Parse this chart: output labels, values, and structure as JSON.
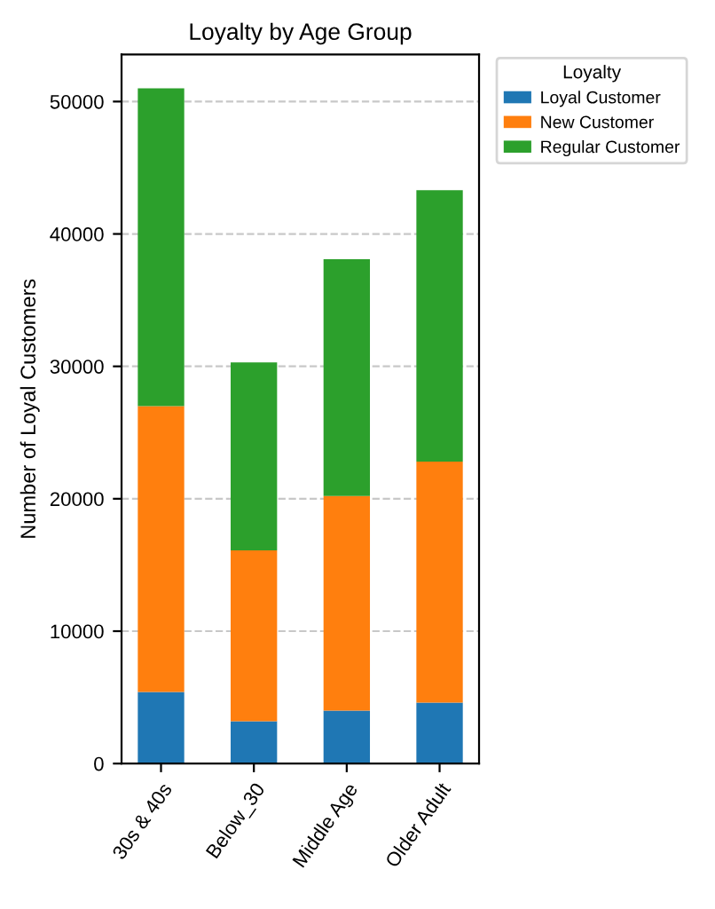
{
  "chart_data": {
    "type": "bar",
    "stacked": true,
    "title": "Loyalty by Age Group",
    "ylabel": "Number of Loyal Customers",
    "categories": [
      "30s & 40s",
      "Below_30",
      "Middle Age",
      "Older Adult"
    ],
    "series": [
      {
        "name": "Loyal Customer",
        "color": "#1f77b4",
        "values": [
          5400,
          3200,
          4000,
          4600
        ]
      },
      {
        "name": "New Customer",
        "color": "#ff7f0e",
        "values": [
          21600,
          12900,
          16200,
          18200
        ]
      },
      {
        "name": "Regular Customer",
        "color": "#2ca02c",
        "values": [
          24000,
          14200,
          17900,
          20500
        ]
      }
    ],
    "ylim": [
      0,
      53550
    ],
    "yticks": [
      0,
      10000,
      20000,
      30000,
      40000,
      50000
    ],
    "grid": "y",
    "legend": "top right",
    "legend_title": "Loyalty"
  }
}
